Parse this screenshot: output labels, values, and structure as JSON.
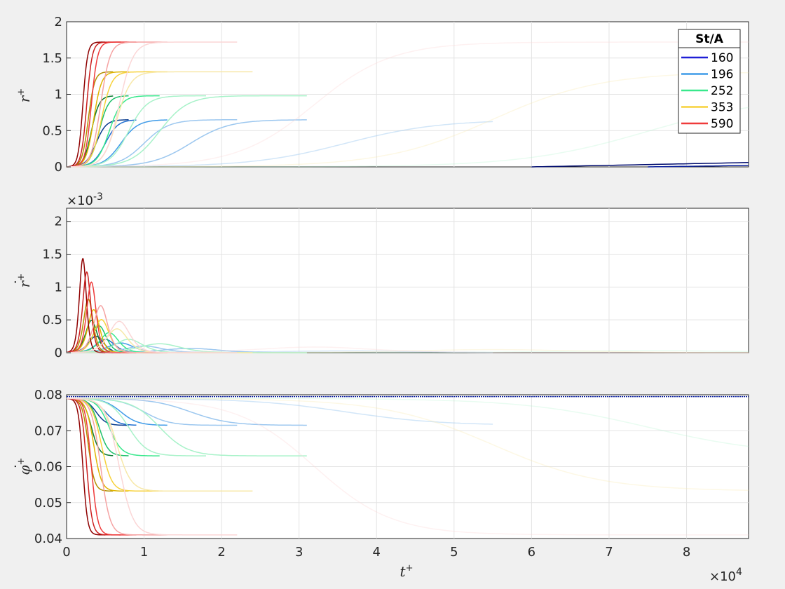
{
  "chart_data": [
    {
      "type": "line",
      "ylabel": "r+",
      "ylim": [
        0,
        2
      ],
      "xlim": [
        0,
        88000
      ],
      "yticks": [
        "0",
        "0.5",
        "1",
        "1.5",
        "2"
      ],
      "xticks": [],
      "grid": true,
      "legend": {
        "title": "St/A",
        "position": "top-right",
        "entries": [
          {
            "label": "160",
            "color": "#1f1fd6"
          },
          {
            "label": "196",
            "color": "#3f9be8"
          },
          {
            "label": "252",
            "color": "#38e88c"
          },
          {
            "label": "353",
            "color": "#f7d23c"
          },
          {
            "label": "590",
            "color": "#ef3b3b"
          }
        ]
      },
      "note": "sigmoidal growth curves; asymptotes 0.65, 0.98, 1.31, 1.72 (and a slowly rising dark-blue family)"
    },
    {
      "type": "line",
      "ylabel": "ṙ+",
      "ylim": [
        0,
        0.0022
      ],
      "xlim": [
        0,
        88000
      ],
      "exponent_label": "×10-3",
      "yticks": [
        "0",
        "0.5",
        "1",
        "1.5",
        "2"
      ],
      "xticks": [],
      "grid": true,
      "note": "pulse-shaped growth rate curves, peak up to ~2.2e-3 near t+≈2000"
    },
    {
      "type": "line",
      "ylabel": "φ̇+",
      "ylim": [
        0.04,
        0.08
      ],
      "xlim": [
        0,
        88000
      ],
      "yticks": [
        "0.04",
        "0.05",
        "0.06",
        "0.07",
        "0.08"
      ],
      "xticks": [
        "0",
        "1",
        "2",
        "3",
        "4",
        "5",
        "6",
        "7",
        "8"
      ],
      "xlabel": "t+",
      "x_exponent_label": "×10^4",
      "grid": true,
      "note": "decaying curves from 0.079 to plateaus 0.0715, 0.063, 0.053, 0.041"
    }
  ],
  "series_colors": {
    "160": [
      "#000c6e",
      "#0a1f9c",
      "#1f1fd6"
    ],
    "196": [
      "#0a3d8f",
      "#1f6fd1",
      "#3f9be8",
      "#9cc7ef"
    ],
    "252": [
      "#0a7a2f",
      "#1fc06b",
      "#38e88c",
      "#a8f2c9"
    ],
    "353": [
      "#b39000",
      "#e0b500",
      "#f7d23c",
      "#f7e8a8"
    ],
    "590": [
      "#8f0000",
      "#cc1f1f",
      "#ef3b3b",
      "#f5a3a3",
      "#fbd6d6"
    ]
  }
}
